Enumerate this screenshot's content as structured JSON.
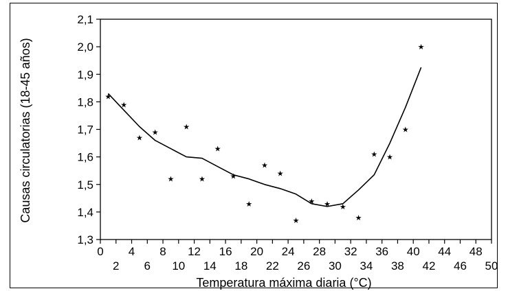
{
  "chart_data": {
    "type": "scatter",
    "title": "",
    "xlabel": "Temperatura máxima diaria (°C)",
    "ylabel": "Causas circulatorias (18-45 años)",
    "xlim": [
      0,
      50
    ],
    "ylim": [
      1.3,
      2.1
    ],
    "x_ticks_upper": [
      "0",
      "4",
      "8",
      "12",
      "16",
      "20",
      "24",
      "28",
      "32",
      "36",
      "40",
      "44",
      "48"
    ],
    "x_ticks_lower": [
      "2",
      "6",
      "10",
      "14",
      "18",
      "22",
      "26",
      "30",
      "34",
      "38",
      "42",
      "46",
      "50"
    ],
    "y_ticks": [
      "1,3",
      "1,4",
      "1,5",
      "1,6",
      "1,7",
      "1,8",
      "1,9",
      "2,0",
      "2,1"
    ],
    "grid": false,
    "series": [
      {
        "kind": "points",
        "marker": "star",
        "x": [
          1,
          3,
          5,
          7,
          9,
          11,
          13,
          15,
          17,
          19,
          21,
          23,
          25,
          27,
          29,
          31,
          33,
          35,
          37,
          39,
          41
        ],
        "y": [
          1.82,
          1.79,
          1.67,
          1.69,
          1.52,
          1.71,
          1.52,
          1.63,
          1.53,
          1.43,
          1.57,
          1.54,
          1.37,
          1.44,
          1.43,
          1.42,
          1.38,
          1.61,
          1.6,
          1.7,
          2.0
        ]
      },
      {
        "kind": "line",
        "x": [
          1,
          3,
          5,
          7,
          9,
          11,
          13,
          15,
          17,
          19,
          21,
          23,
          25,
          27,
          29,
          31,
          33,
          35,
          37,
          39,
          41
        ],
        "y": [
          1.83,
          1.77,
          1.71,
          1.66,
          1.63,
          1.6,
          1.595,
          1.565,
          1.535,
          1.52,
          1.5,
          1.485,
          1.465,
          1.43,
          1.42,
          1.43,
          1.48,
          1.535,
          1.65,
          1.78,
          1.925
        ]
      }
    ],
    "colors": {
      "line": "#000000",
      "markers": "#000000",
      "axes": "#000000"
    }
  }
}
